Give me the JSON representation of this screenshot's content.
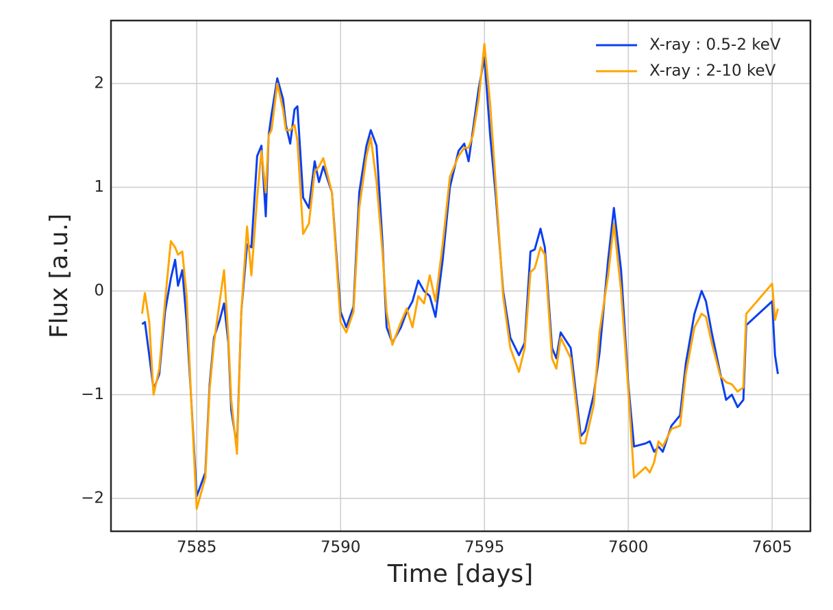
{
  "chart_data": {
    "type": "line",
    "xlabel": "Time [days]",
    "ylabel": "Flux [a.u.]",
    "xlim": [
      7582.02,
      7606.33
    ],
    "ylim": [
      -2.317,
      2.607
    ],
    "xticks": [
      7585,
      7590,
      7595,
      7600,
      7605
    ],
    "yticks": [
      {
        "value": -2,
        "label": "−2"
      },
      {
        "value": -1,
        "label": "−1"
      },
      0,
      1,
      2
    ],
    "grid": true,
    "legend": "upper right",
    "x": [
      7583.1,
      7583.2,
      7583.35,
      7583.5,
      7583.7,
      7583.9,
      7584.1,
      7584.25,
      7584.35,
      7584.5,
      7584.65,
      7584.8,
      7585.0,
      7585.3,
      7585.45,
      7585.6,
      7585.8,
      7585.95,
      7586.1,
      7586.2,
      7586.4,
      7586.55,
      7586.75,
      7586.9,
      7587.1,
      7587.25,
      7587.4,
      7587.5,
      7587.6,
      7587.8,
      7588.0,
      7588.1,
      7588.25,
      7588.4,
      7588.5,
      7588.7,
      7588.9,
      7589.1,
      7589.25,
      7589.4,
      7589.7,
      7590.0,
      7590.2,
      7590.45,
      7590.65,
      7590.9,
      7591.05,
      7591.25,
      7591.45,
      7591.6,
      7591.8,
      7592.1,
      7592.3,
      7592.5,
      7592.7,
      7592.9,
      7593.1,
      7593.3,
      7593.55,
      7593.8,
      7594.1,
      7594.3,
      7594.45,
      7594.6,
      7594.8,
      7595.0,
      7595.2,
      7595.4,
      7595.65,
      7595.9,
      7596.2,
      7596.4,
      7596.6,
      7596.75,
      7596.95,
      7597.1,
      7597.35,
      7597.5,
      7597.65,
      7598.0,
      7598.35,
      7598.5,
      7598.8,
      7599.0,
      7599.3,
      7599.5,
      7599.75,
      7600.0,
      7600.2,
      7600.6,
      7600.75,
      7600.9,
      7601.05,
      7601.2,
      7601.5,
      7601.8,
      7602.0,
      7602.3,
      7602.55,
      7602.7,
      7602.9,
      7603.2,
      7603.4,
      7603.6,
      7603.8,
      7604.0,
      7604.1,
      7605.0,
      7605.1,
      7605.2
    ],
    "series": [
      {
        "name": "X-ray : 0.5-2 keV",
        "color": "#0b3ff0",
        "values": [
          -0.32,
          -0.3,
          -0.62,
          -0.95,
          -0.8,
          -0.2,
          0.12,
          0.3,
          0.05,
          0.2,
          -0.3,
          -1.0,
          -1.98,
          -1.75,
          -0.9,
          -0.45,
          -0.28,
          -0.12,
          -0.5,
          -1.15,
          -1.5,
          -0.2,
          0.45,
          0.42,
          1.3,
          1.4,
          0.72,
          1.5,
          1.7,
          2.05,
          1.85,
          1.6,
          1.42,
          1.75,
          1.78,
          0.9,
          0.8,
          1.25,
          1.05,
          1.2,
          0.95,
          -0.2,
          -0.35,
          -0.15,
          0.95,
          1.4,
          1.55,
          1.4,
          0.5,
          -0.35,
          -0.5,
          -0.35,
          -0.2,
          -0.1,
          0.1,
          0.0,
          -0.05,
          -0.25,
          0.3,
          1.0,
          1.35,
          1.42,
          1.25,
          1.55,
          1.95,
          2.25,
          1.5,
          0.9,
          0.0,
          -0.45,
          -0.62,
          -0.5,
          0.38,
          0.4,
          0.6,
          0.42,
          -0.55,
          -0.65,
          -0.4,
          -0.55,
          -1.4,
          -1.35,
          -1.0,
          -0.6,
          0.3,
          0.8,
          0.2,
          -0.9,
          -1.5,
          -1.47,
          -1.45,
          -1.55,
          -1.5,
          -1.55,
          -1.3,
          -1.2,
          -0.7,
          -0.22,
          0.0,
          -0.1,
          -0.4,
          -0.8,
          -1.05,
          -1.0,
          -1.12,
          -1.05,
          -0.33,
          -0.1,
          -0.62,
          -0.8
        ]
      },
      {
        "name": "X-ray : 2-10 keV",
        "color": "#ffa500",
        "values": [
          -0.22,
          -0.02,
          -0.3,
          -1.0,
          -0.75,
          -0.1,
          0.48,
          0.42,
          0.35,
          0.38,
          -0.05,
          -1.0,
          -2.1,
          -1.8,
          -0.95,
          -0.5,
          -0.1,
          0.2,
          -0.45,
          -1.05,
          -1.57,
          -0.2,
          0.62,
          0.15,
          0.9,
          1.35,
          0.95,
          1.5,
          1.55,
          2.0,
          1.75,
          1.55,
          1.55,
          1.6,
          1.45,
          0.55,
          0.65,
          1.15,
          1.2,
          1.28,
          0.95,
          -0.3,
          -0.4,
          -0.2,
          0.8,
          1.3,
          1.48,
          1.05,
          0.4,
          -0.2,
          -0.52,
          -0.3,
          -0.17,
          -0.35,
          -0.05,
          -0.12,
          0.15,
          -0.1,
          0.45,
          1.1,
          1.3,
          1.38,
          1.38,
          1.5,
          1.85,
          2.38,
          1.8,
          1.0,
          -0.05,
          -0.55,
          -0.78,
          -0.55,
          0.18,
          0.22,
          0.42,
          0.35,
          -0.65,
          -0.75,
          -0.45,
          -0.65,
          -1.47,
          -1.47,
          -1.1,
          -0.4,
          0.15,
          0.65,
          0.0,
          -0.95,
          -1.8,
          -1.7,
          -1.75,
          -1.65,
          -1.45,
          -1.5,
          -1.33,
          -1.3,
          -0.8,
          -0.35,
          -0.22,
          -0.25,
          -0.5,
          -0.82,
          -0.88,
          -0.9,
          -0.97,
          -0.93,
          -0.22,
          0.07,
          -0.28,
          -0.17
        ]
      }
    ]
  }
}
